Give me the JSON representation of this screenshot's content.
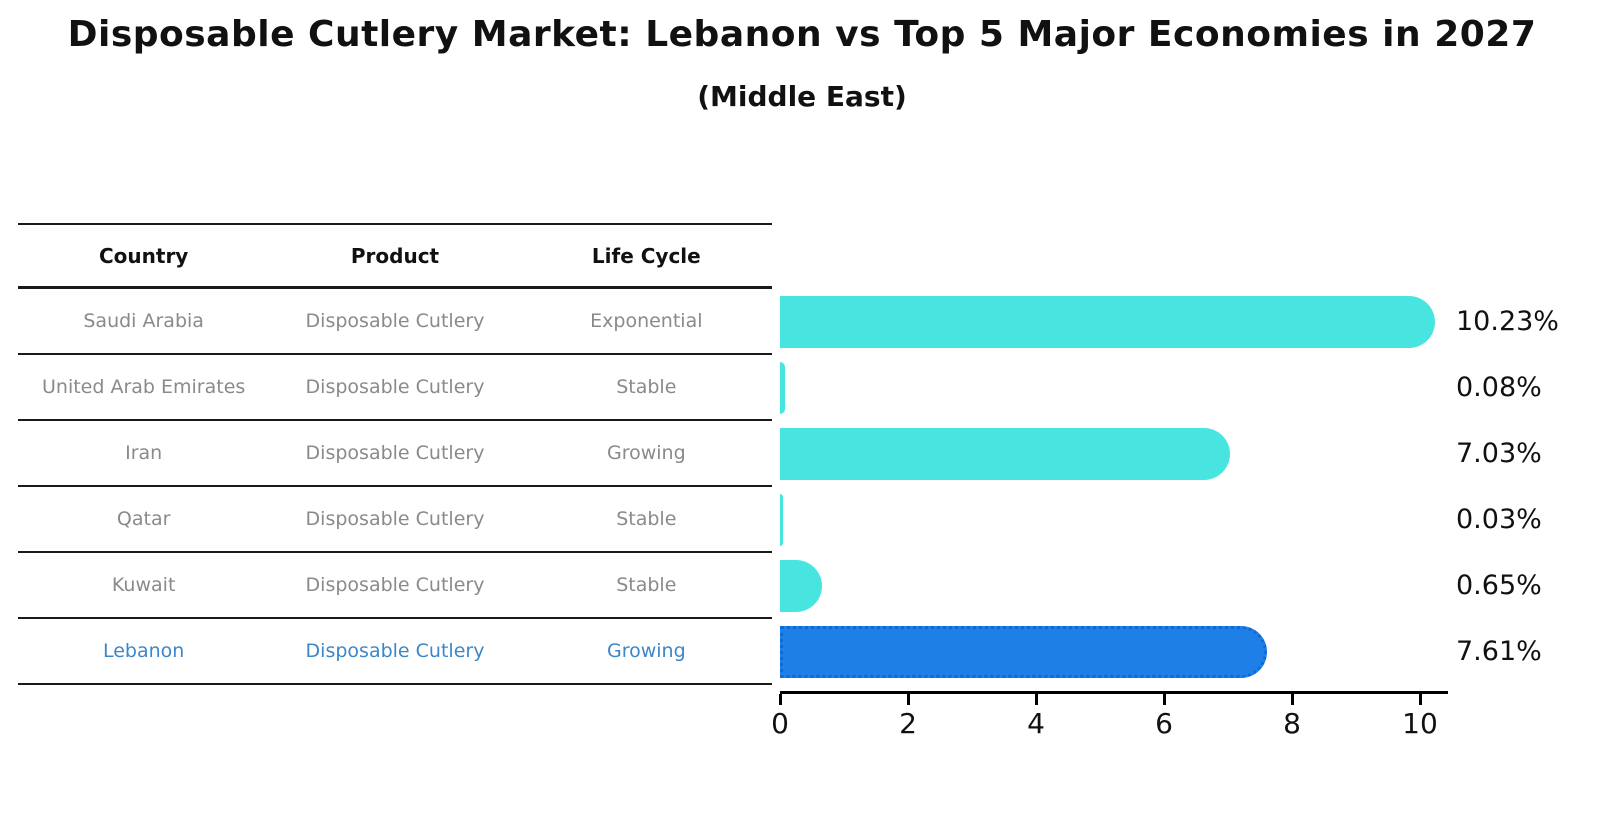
{
  "title": "Disposable Cutlery Market: Lebanon vs Top 5 Major Economies in 2027",
  "subtitle": "(Middle East)",
  "colors": {
    "bar": "#48e5e0",
    "highlight_bar": "#1e7fe6",
    "highlight_border": "#0c6bd9",
    "highlight_text": "#3c87c9",
    "table_text": "#8a8a8a",
    "header_text": "#111111",
    "axis": "#000000"
  },
  "table": {
    "headers": [
      "Country",
      "Product",
      "Life Cycle"
    ],
    "rows": [
      {
        "country": "Saudi Arabia",
        "product": "Disposable Cutlery",
        "life_cycle": "Exponential",
        "highlight": false
      },
      {
        "country": "United Arab Emirates",
        "product": "Disposable Cutlery",
        "life_cycle": "Stable",
        "highlight": false
      },
      {
        "country": "Iran",
        "product": "Disposable Cutlery",
        "life_cycle": "Growing",
        "highlight": false
      },
      {
        "country": "Qatar",
        "product": "Disposable Cutlery",
        "life_cycle": "Stable",
        "highlight": false
      },
      {
        "country": "Kuwait",
        "product": "Disposable Cutlery",
        "life_cycle": "Stable",
        "highlight": false
      },
      {
        "country": "Lebanon",
        "product": "Disposable Cutlery",
        "life_cycle": "Growing",
        "highlight": true
      }
    ]
  },
  "chart_data": {
    "type": "bar",
    "orientation": "horizontal",
    "title": "Disposable Cutlery Market: Lebanon vs Top 5 Major Economies in 2027",
    "subtitle": "(Middle East)",
    "categories": [
      "Saudi Arabia",
      "United Arab Emirates",
      "Iran",
      "Qatar",
      "Kuwait",
      "Lebanon"
    ],
    "values": [
      10.23,
      0.08,
      7.03,
      0.03,
      0.65,
      7.61
    ],
    "labels": [
      "10.23%",
      "0.08%",
      "7.03%",
      "0.03%",
      "0.65%",
      "7.61%"
    ],
    "unit": "percent",
    "xlabel": "",
    "ylabel": "",
    "x_ticks": [
      0,
      2,
      4,
      6,
      8,
      10
    ],
    "xlim": [
      0,
      10.45
    ],
    "grid": false,
    "legend": false,
    "highlight_index": 5,
    "bar_color": "#48e5e0",
    "highlight_color": "#1e7fe6"
  }
}
